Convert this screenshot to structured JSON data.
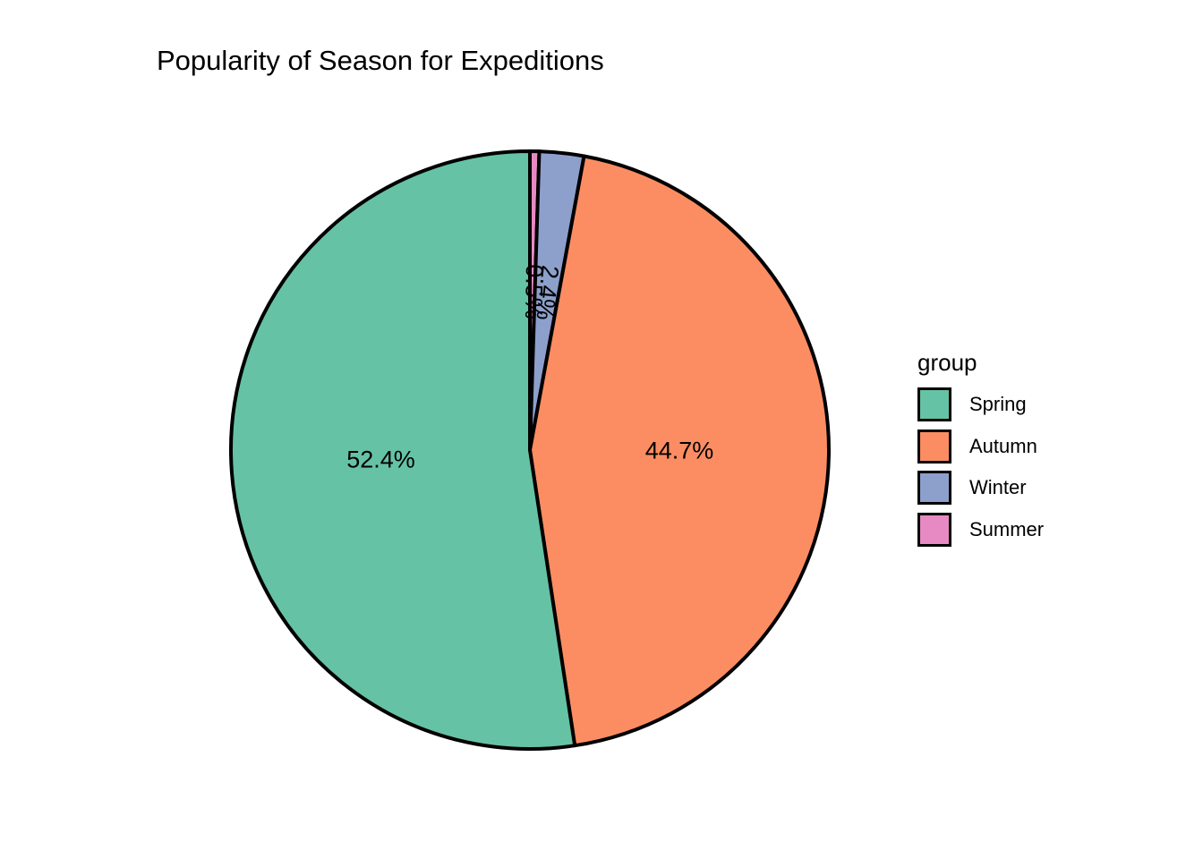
{
  "chart_data": {
    "type": "pie",
    "title": "Popularity of Season for Expeditions",
    "legend_title": "group",
    "legend_position": "right",
    "categories": [
      "Spring",
      "Autumn",
      "Winter",
      "Summer"
    ],
    "values": [
      52.4,
      44.7,
      2.4,
      0.5
    ],
    "labels": [
      "52.4%",
      "44.7%",
      "2.4%",
      "0.5%"
    ],
    "colors": [
      "#66c2a5",
      "#fc8d62",
      "#8da0cb",
      "#e78ac3"
    ],
    "slice_order": [
      "Summer",
      "Winter",
      "Autumn",
      "Spring"
    ],
    "direction": "clockwise",
    "start": "top"
  }
}
